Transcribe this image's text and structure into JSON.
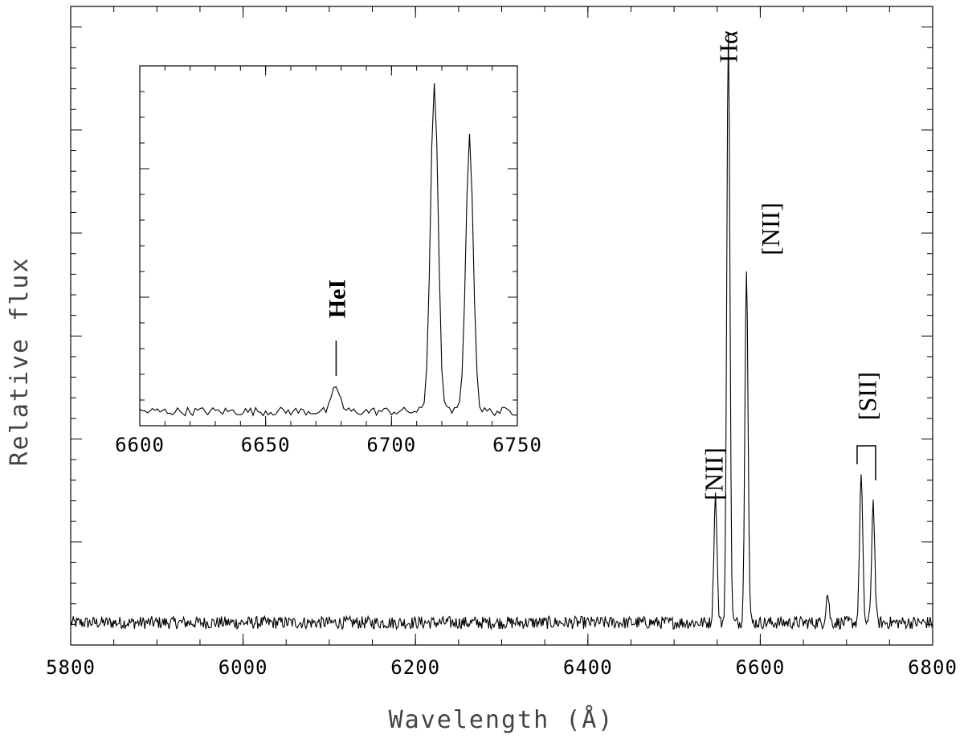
{
  "chart_data": [
    {
      "type": "line",
      "role": "main",
      "xlabel": "Wavelength (Å)",
      "ylabel": "Relative flux",
      "xlim": [
        5800,
        6800
      ],
      "ylim": [
        0,
        1
      ],
      "x_ticks": [
        5800,
        6000,
        6200,
        6400,
        6600,
        6800
      ],
      "y_ticks_labeled": false,
      "continuum": 0.035,
      "noise_amplitude": 0.01,
      "emission_lines": [
        {
          "label": "[NII]",
          "wavelength": 6548,
          "peak": 0.2
        },
        {
          "label": "Hα",
          "wavelength": 6563,
          "peak": 0.93
        },
        {
          "label": "[NII]",
          "wavelength": 6584,
          "peak": 0.56
        },
        {
          "label": "[SII]",
          "wavelength": 6717,
          "peak": 0.23
        },
        {
          "label": "[SII]",
          "wavelength": 6731,
          "peak": 0.19
        },
        {
          "label": "",
          "wavelength": 6678,
          "peak": 0.045
        }
      ],
      "annotations": [
        {
          "text": "[NII]",
          "x": 6548
        },
        {
          "text": "Hα",
          "x": 6563
        },
        {
          "text": "[NII]",
          "x": 6584
        },
        {
          "text": "[SII]",
          "x": 6724
        }
      ]
    },
    {
      "type": "line",
      "role": "inset",
      "xlim": [
        6600,
        6750
      ],
      "ylim": [
        0,
        1
      ],
      "x_ticks": [
        6600,
        6650,
        6700,
        6750
      ],
      "continuum": 0.04,
      "emission_lines": [
        {
          "label": "HeI",
          "wavelength": 6678,
          "peak": 0.07
        },
        {
          "label": "[SII]",
          "wavelength": 6717,
          "peak": 0.92
        },
        {
          "label": "[SII]",
          "wavelength": 6731,
          "peak": 0.76
        }
      ],
      "annotations": [
        {
          "text": "HeI",
          "x": 6678
        }
      ]
    }
  ]
}
